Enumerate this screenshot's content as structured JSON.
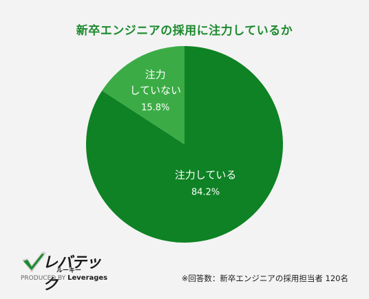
{
  "chart_data": {
    "type": "pie",
    "title": "新卒エンジニアの採用に注力しているか",
    "slices": [
      {
        "label": "注力している",
        "value": 84.2,
        "display": "84.2%",
        "color": "#0e8224"
      },
      {
        "label": "注力していない",
        "label_lines": [
          "注力",
          "していない"
        ],
        "value": 15.8,
        "display": "15.8%",
        "color": "#3bac45"
      }
    ],
    "label_color": "#ffffff"
  },
  "logo": {
    "name": "レバテック",
    "sub": "ルーキー",
    "produced_by": "PRODUCED BY",
    "brand": "Leverages"
  },
  "note": "※回答数：新卒エンジニアの採用担当者 120名"
}
